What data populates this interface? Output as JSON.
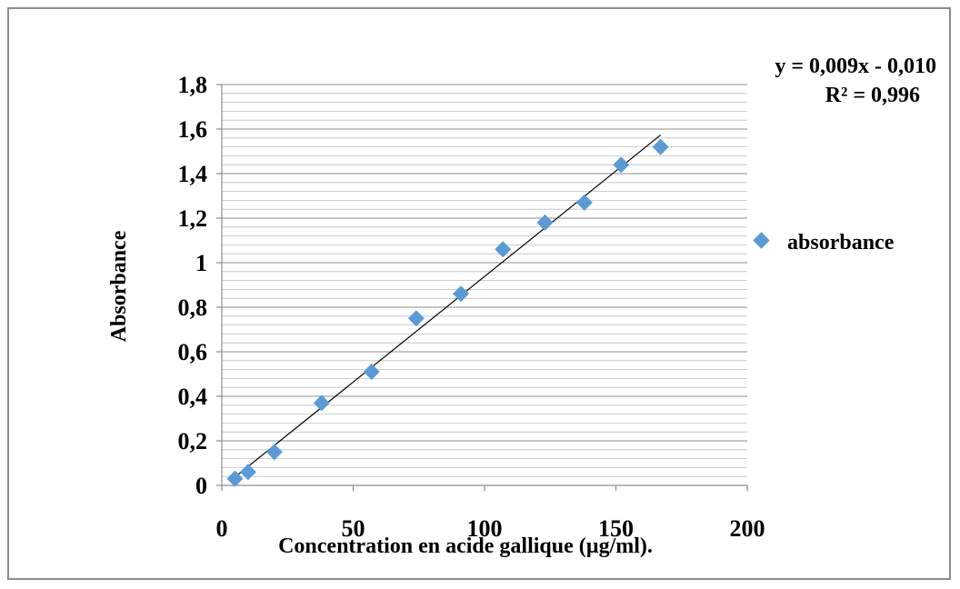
{
  "chart_data": {
    "type": "scatter",
    "xlabel": "Concentration en acide gallique (µg/ml).",
    "ylabel": "Absorbance",
    "xlim": [
      0,
      200
    ],
    "ylim": [
      0,
      1.8
    ],
    "x_ticks": [
      "0",
      "50",
      "100",
      "150",
      "200"
    ],
    "y_ticks": [
      "0",
      "0,2",
      "0,4",
      "0,6",
      "0,8",
      "1",
      "1,2",
      "1,4",
      "1,6",
      "1,8"
    ],
    "grid": "horizontal",
    "legend_position": "right",
    "series": [
      {
        "name": "absorbance",
        "color": "#5b9bd5",
        "marker": "diamond",
        "x": [
          5,
          10,
          20,
          38,
          57,
          74,
          91,
          107,
          123,
          138,
          152,
          167
        ],
        "y": [
          0.03,
          0.06,
          0.15,
          0.37,
          0.51,
          0.75,
          0.86,
          1.06,
          1.18,
          1.27,
          1.44,
          1.52
        ]
      }
    ],
    "trendline": {
      "equation": "y = 0,009x - 0,010",
      "r2": "R² = 0,996",
      "slope": 0.00948,
      "intercept": -0.01,
      "x_range": [
        5,
        167
      ],
      "color": "#000000"
    }
  }
}
